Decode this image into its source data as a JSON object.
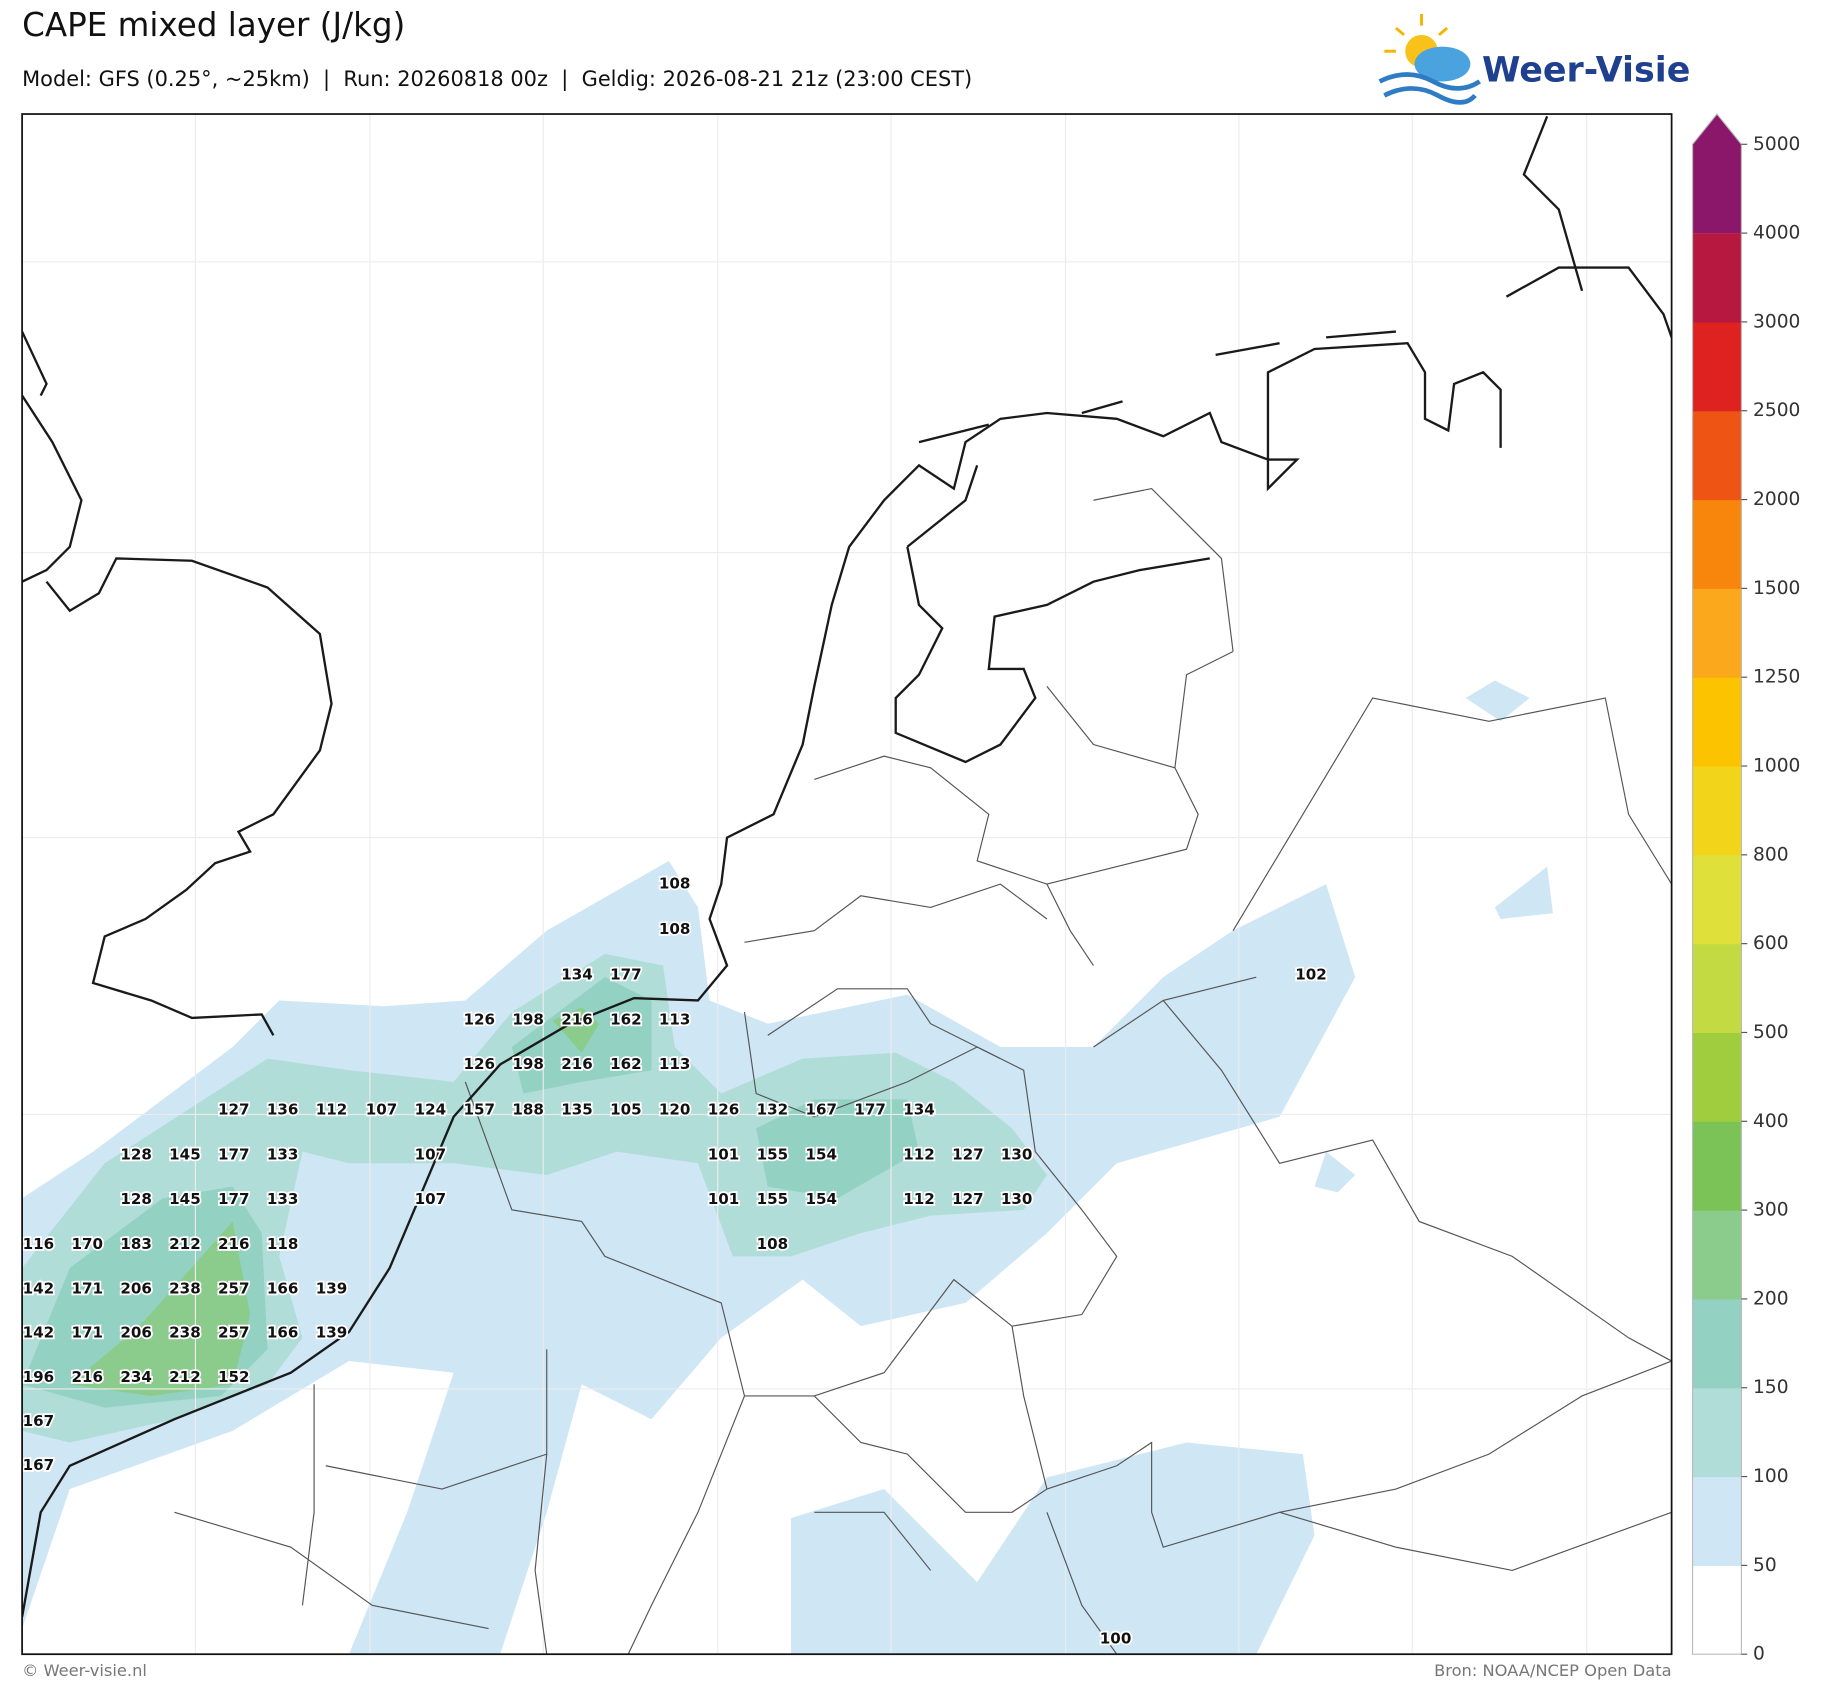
{
  "header": {
    "title": "CAPE mixed layer (J/kg)",
    "subtitle": "Model: GFS (0.25°, ~25km)  |  Run: 20260818 00z  |  Geldig: 2026-08-21 21z (23:00 CEST)"
  },
  "logo": {
    "text": "Weer-Visie"
  },
  "colorbar": {
    "ticks": [
      0,
      50,
      100,
      150,
      200,
      300,
      400,
      500,
      600,
      800,
      1000,
      1250,
      1500,
      2000,
      2500,
      3000,
      4000,
      5000
    ],
    "colors": [
      "#ffffff",
      "#cfe6f5",
      "#b0ddd8",
      "#93d1c2",
      "#8bcb8c",
      "#7bc257",
      "#9fcd3e",
      "#c3da43",
      "#dfe03a",
      "#f2d41a",
      "#fbc300",
      "#fca81d",
      "#f9860c",
      "#ee5514",
      "#dd2220",
      "#b7183f",
      "#8a1769"
    ]
  },
  "map": {
    "labels": [
      108,
      108,
      134,
      177,
      126,
      198,
      216,
      162,
      113,
      126,
      198,
      216,
      162,
      113,
      127,
      136,
      112,
      107,
      124,
      157,
      188,
      135,
      105,
      120,
      126,
      132,
      167,
      177,
      134,
      128,
      145,
      177,
      133,
      107,
      101,
      155,
      154,
      112,
      127,
      130,
      128,
      145,
      177,
      133,
      107,
      101,
      155,
      154,
      112,
      127,
      130,
      116,
      170,
      183,
      212,
      216,
      118,
      108,
      142,
      171,
      206,
      238,
      257,
      166,
      139,
      142,
      171,
      206,
      238,
      257,
      166,
      139,
      196,
      216,
      234,
      212,
      152,
      167,
      167,
      102,
      100
    ]
  },
  "footer": {
    "left": "© Weer-visie.nl",
    "right": "Bron: NOAA/NCEP Open Data"
  }
}
